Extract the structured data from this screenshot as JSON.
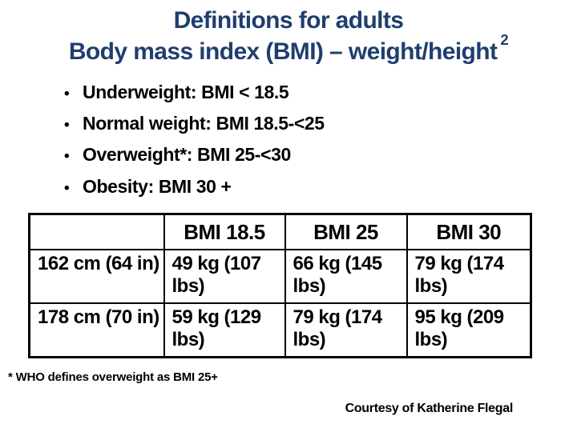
{
  "slide": {
    "colors": {
      "title": "#1f3e6e",
      "text": "#000000",
      "table_border": "#000000",
      "background": "#ffffff"
    },
    "title_line1": "Definitions for adults",
    "title_line2": "Body mass index (BMI) – weight/height",
    "title_superscript": "2",
    "bullet_glyph": "•",
    "bullets": [
      "Underweight: BMI < 18.5",
      "Normal weight: BMI 18.5-<25",
      "Overweight*: BMI 25-<30",
      "Obesity: BMI 30 +"
    ],
    "table": {
      "headers": [
        "",
        "BMI 18.5",
        "BMI 25",
        "BMI 30"
      ],
      "rows": [
        [
          "162 cm (64 in)",
          "49 kg (107 lbs)",
          "66 kg (145 lbs)",
          "79 kg (174 lbs)"
        ],
        [
          "178 cm (70 in)",
          "59 kg (129 lbs)",
          "79 kg (174 lbs)",
          "95 kg (209 lbs)"
        ]
      ]
    },
    "footnote": "* WHO defines overweight as BMI 25+",
    "credit": "Courtesy of Katherine Flegal"
  }
}
